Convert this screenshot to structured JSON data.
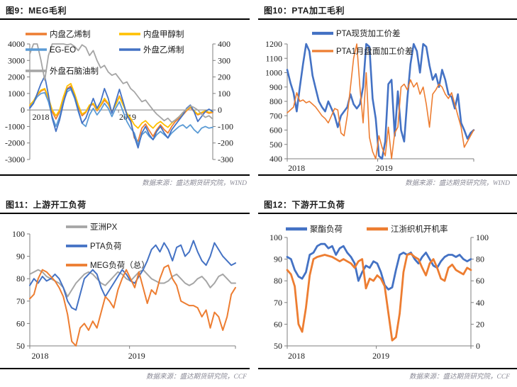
{
  "page": {
    "background": "#ffffff"
  },
  "colors": {
    "orange": "#ED7D31",
    "yellow": "#FFC000",
    "light_blue": "#5B9BD5",
    "dark_blue": "#4472C4",
    "gray": "#A5A5A5",
    "axis_line": "#7f7f7f",
    "tick_text": "#1a1a1a",
    "source_text": "#8a8a96",
    "rule": "#000000"
  },
  "panels": [
    {
      "id": "fig9",
      "title": "图9：MEG毛利",
      "source": "数据来源：盛达期货研究院，WIND"
    },
    {
      "id": "fig10",
      "title": "图10：PTA加工毛利",
      "source": "数据来源：盛达期货研究院，WIND"
    },
    {
      "id": "fig11",
      "title": "图11：上游开工负荷",
      "source": "数据来源：盛达期货研究院，CCF"
    },
    {
      "id": "fig12",
      "title": "图12：下游开工负荷",
      "source": "数据来源：盛达期货研究院，CCF"
    }
  ],
  "chart_data": [
    {
      "type": "line",
      "title": "图9：MEG毛利",
      "xlabel": "",
      "ylabel": "",
      "x_labels": [
        "2018",
        "2019"
      ],
      "ylim": [
        -3000,
        4000
      ],
      "yticks": [
        4000,
        3000,
        2000,
        1000,
        0,
        -1000,
        -2000,
        -3000
      ],
      "y2lim": [
        -300,
        400
      ],
      "y2ticks": [
        400,
        300,
        200,
        100,
        0,
        -100,
        -200,
        -300
      ],
      "grid": false,
      "legend_position": "top-left-overlay",
      "series": [
        {
          "name": "内盘乙烯制",
          "color": "#ED7D31",
          "axis": "left",
          "width": 1.8,
          "values": [
            200,
            500,
            900,
            1150,
            1250,
            700,
            -100,
            -550,
            -100,
            700,
            1300,
            1450,
            900,
            200,
            -350,
            -150,
            250,
            350,
            -50,
            250,
            600,
            350,
            -150,
            350,
            850,
            350,
            -250,
            -600,
            -1700,
            -1900,
            -1100,
            -850,
            -1250,
            -1600,
            -1200,
            -900,
            -1200,
            -1400,
            -1000,
            -700,
            -500,
            -300,
            -50,
            150,
            -100,
            -300,
            -200,
            -100,
            -200,
            -150
          ]
        },
        {
          "name": "内盘甲醇制",
          "color": "#FFC000",
          "axis": "left",
          "width": 1.8,
          "values": [
            300,
            550,
            950,
            1200,
            1300,
            750,
            0,
            -350,
            0,
            800,
            1450,
            1600,
            1000,
            300,
            -250,
            -100,
            300,
            400,
            0,
            300,
            700,
            400,
            -100,
            300,
            800,
            300,
            -200,
            -500,
            -900,
            -1100,
            -800,
            -650,
            -900,
            -1100,
            -850,
            -700,
            -900,
            -1050,
            -800,
            -600,
            -400,
            -200,
            0,
            200,
            -50,
            -250,
            -150,
            -50,
            -150,
            -100
          ]
        },
        {
          "name": "EG-EO",
          "color": "#5B9BD5",
          "axis": "left",
          "width": 1.8,
          "values": [
            150,
            450,
            800,
            1000,
            1050,
            500,
            -400,
            -1000,
            -400,
            500,
            1100,
            1250,
            700,
            -100,
            -800,
            -1000,
            -300,
            100,
            -300,
            0,
            400,
            100,
            -400,
            100,
            500,
            -100,
            -700,
            -1100,
            -1400,
            -2100,
            -1500,
            -1300,
            -1600,
            -1800,
            -1500,
            -1300,
            -1500,
            -1700,
            -1400,
            -1200,
            -1000,
            -900,
            -1100,
            -900,
            -1200,
            -1400,
            -1100,
            -1000,
            -1100,
            -1050
          ]
        },
        {
          "name": "外盘乙烯制",
          "color": "#4472C4",
          "axis": "left",
          "width": 1.8,
          "values": [
            100,
            400,
            1000,
            1600,
            2050,
            900,
            -500,
            -1300,
            -600,
            400,
            1250,
            1350,
            800,
            0,
            -800,
            -500,
            100,
            700,
            100,
            500,
            1300,
            700,
            -200,
            500,
            1250,
            500,
            -300,
            -700,
            -1600,
            -2300,
            -1400,
            -1000,
            -1500,
            -1800,
            -1300,
            -1000,
            -1400,
            -1700,
            -1200,
            -900,
            -600,
            -300,
            100,
            300,
            -100,
            -700,
            -400,
            -100,
            50,
            -100
          ]
        },
        {
          "name": "外盘石脑油制",
          "color": "#A5A5A5",
          "axis": "right",
          "width": 1.8,
          "values": [
            340,
            400,
            415,
            300,
            180,
            330,
            405,
            415,
            400,
            410,
            395,
            405,
            385,
            360,
            395,
            380,
            330,
            360,
            300,
            255,
            270,
            230,
            210,
            220,
            190,
            160,
            170,
            130,
            110,
            80,
            50,
            60,
            30,
            0,
            -25,
            -45,
            -65,
            -50,
            -75,
            -60,
            -40,
            -15,
            5,
            25,
            15,
            0,
            -25,
            -45,
            -35,
            -55
          ]
        }
      ],
      "source": "数据来源：盛达期货研究院，WIND"
    },
    {
      "type": "line",
      "title": "图10：PTA加工毛利",
      "xlabel": "",
      "ylabel": "",
      "x_labels": [
        "2018",
        "2019"
      ],
      "ylim": [
        400,
        1200
      ],
      "yticks": [
        1200,
        1100,
        1000,
        900,
        800,
        700,
        600,
        500,
        400
      ],
      "grid": false,
      "legend_position": "top-left-overlay",
      "series": [
        {
          "name": "PTA现货加工价差",
          "color": "#4472C4",
          "axis": "left",
          "width": 2.6,
          "values": [
            1020,
            930,
            860,
            730,
            900,
            1060,
            1200,
            1150,
            980,
            890,
            800,
            760,
            730,
            800,
            750,
            700,
            620,
            700,
            730,
            760,
            850,
            780,
            750,
            780,
            900,
            1200,
            1180,
            820,
            680,
            420,
            380,
            520,
            920,
            950,
            560,
            870,
            600,
            520,
            820,
            1060,
            1200,
            1150,
            1000,
            1200,
            1180,
            1050,
            950,
            990,
            900,
            1020,
            950,
            850,
            830,
            750,
            850,
            650,
            600,
            540,
            580,
            600
          ]
        },
        {
          "name": "PTA1月盘面加工价差",
          "color": "#ED7D31",
          "axis": "left",
          "width": 1.6,
          "values": [
            720,
            740,
            760,
            860,
            800,
            810,
            790,
            800,
            780,
            760,
            730,
            700,
            680,
            650,
            700,
            750,
            740,
            580,
            560,
            700,
            900,
            1100,
            1200,
            900,
            650,
            1000,
            550,
            450,
            400,
            560,
            480,
            420,
            620,
            400,
            580,
            620,
            900,
            920,
            880,
            950,
            900,
            930,
            850,
            900,
            780,
            620,
            850,
            880,
            920,
            900,
            850,
            820,
            860,
            780,
            700,
            620,
            480,
            520,
            560,
            600
          ]
        }
      ],
      "source": "数据来源：盛达期货研究院，WIND"
    },
    {
      "type": "line",
      "title": "图11：上游开工负荷",
      "xlabel": "",
      "ylabel": "",
      "x_labels": [
        "2018",
        "2019"
      ],
      "ylim": [
        50,
        100
      ],
      "yticks": [
        100,
        90,
        80,
        70,
        60,
        50
      ],
      "grid": false,
      "legend_position": "top-center-overlay",
      "series": [
        {
          "name": "亚洲PX",
          "color": "#A5A5A5",
          "axis": "left",
          "width": 2,
          "values": [
            82,
            83,
            84,
            83,
            81,
            80,
            79,
            78,
            76,
            72,
            75,
            78,
            80,
            82,
            83,
            82,
            80,
            78,
            77,
            79,
            81,
            83,
            82,
            80,
            79,
            81,
            83,
            84,
            82,
            80,
            79,
            78,
            78,
            79,
            81,
            82,
            80,
            78,
            77,
            78,
            80,
            81,
            79,
            76,
            78,
            81,
            82,
            80,
            78,
            78
          ]
        },
        {
          "name": "PTA负荷",
          "color": "#4472C4",
          "axis": "left",
          "width": 2,
          "values": [
            77,
            80,
            78,
            81,
            79,
            80,
            82,
            80,
            76,
            70,
            67,
            66,
            73,
            80,
            82,
            84,
            82,
            76,
            72,
            75,
            78,
            81,
            84,
            82,
            79,
            78,
            81,
            84,
            88,
            93,
            95,
            92,
            96,
            93,
            88,
            94,
            95,
            90,
            92,
            97,
            92,
            88,
            86,
            90,
            96,
            93,
            90,
            88,
            86,
            87
          ]
        },
        {
          "name": "MEG负荷（总）",
          "color": "#ED7D31",
          "axis": "left",
          "width": 2,
          "values": [
            71,
            73,
            80,
            84,
            83,
            81,
            79,
            76,
            72,
            64,
            52,
            50,
            58,
            60,
            57,
            61,
            58,
            65,
            72,
            70,
            67,
            75,
            80,
            84,
            80,
            76,
            83,
            76,
            69,
            75,
            73,
            80,
            85,
            86,
            80,
            77,
            70,
            69,
            68,
            68,
            67,
            63,
            66,
            58,
            65,
            63,
            57,
            63,
            73,
            76
          ]
        }
      ],
      "source": "数据来源：盛达期货研究院，CCF"
    },
    {
      "type": "line",
      "title": "图12：下游开工负荷",
      "xlabel": "",
      "ylabel": "",
      "x_labels": [
        "2018",
        "2019"
      ],
      "ylim": [
        50,
        100
      ],
      "yticks": [
        100,
        90,
        80,
        70,
        60,
        50
      ],
      "y2lim": [
        0,
        100
      ],
      "y2ticks": [
        100,
        80,
        60,
        40,
        20,
        0
      ],
      "grid": false,
      "legend_position": "top-center",
      "series": [
        {
          "name": "聚酯负荷",
          "color": "#4472C4",
          "axis": "left",
          "width": 2.8,
          "values": [
            91,
            90,
            85,
            82,
            81,
            84,
            92,
            93,
            96,
            97,
            97,
            95,
            96,
            92,
            95,
            96,
            93,
            91,
            88,
            80,
            84,
            87,
            86,
            89,
            88,
            84,
            78,
            76,
            77,
            85,
            92,
            93,
            92,
            93,
            90,
            88,
            91,
            93,
            90,
            87,
            86,
            89,
            91,
            92,
            92,
            91,
            92,
            90,
            89,
            90
          ]
        },
        {
          "name": "江浙织机开机率",
          "color": "#ED7D31",
          "axis": "right",
          "width": 2.8,
          "values": [
            70,
            66,
            55,
            20,
            13,
            35,
            65,
            80,
            82,
            83,
            84,
            83,
            82,
            80,
            78,
            80,
            78,
            76,
            72,
            78,
            80,
            53,
            62,
            60,
            65,
            62,
            55,
            30,
            5,
            8,
            30,
            68,
            84,
            85,
            82,
            80,
            72,
            65,
            76,
            80,
            72,
            62,
            60,
            72,
            75,
            70,
            68,
            66,
            72,
            70
          ]
        }
      ],
      "source": "数据来源：盛达期货研究院，CCF"
    }
  ]
}
